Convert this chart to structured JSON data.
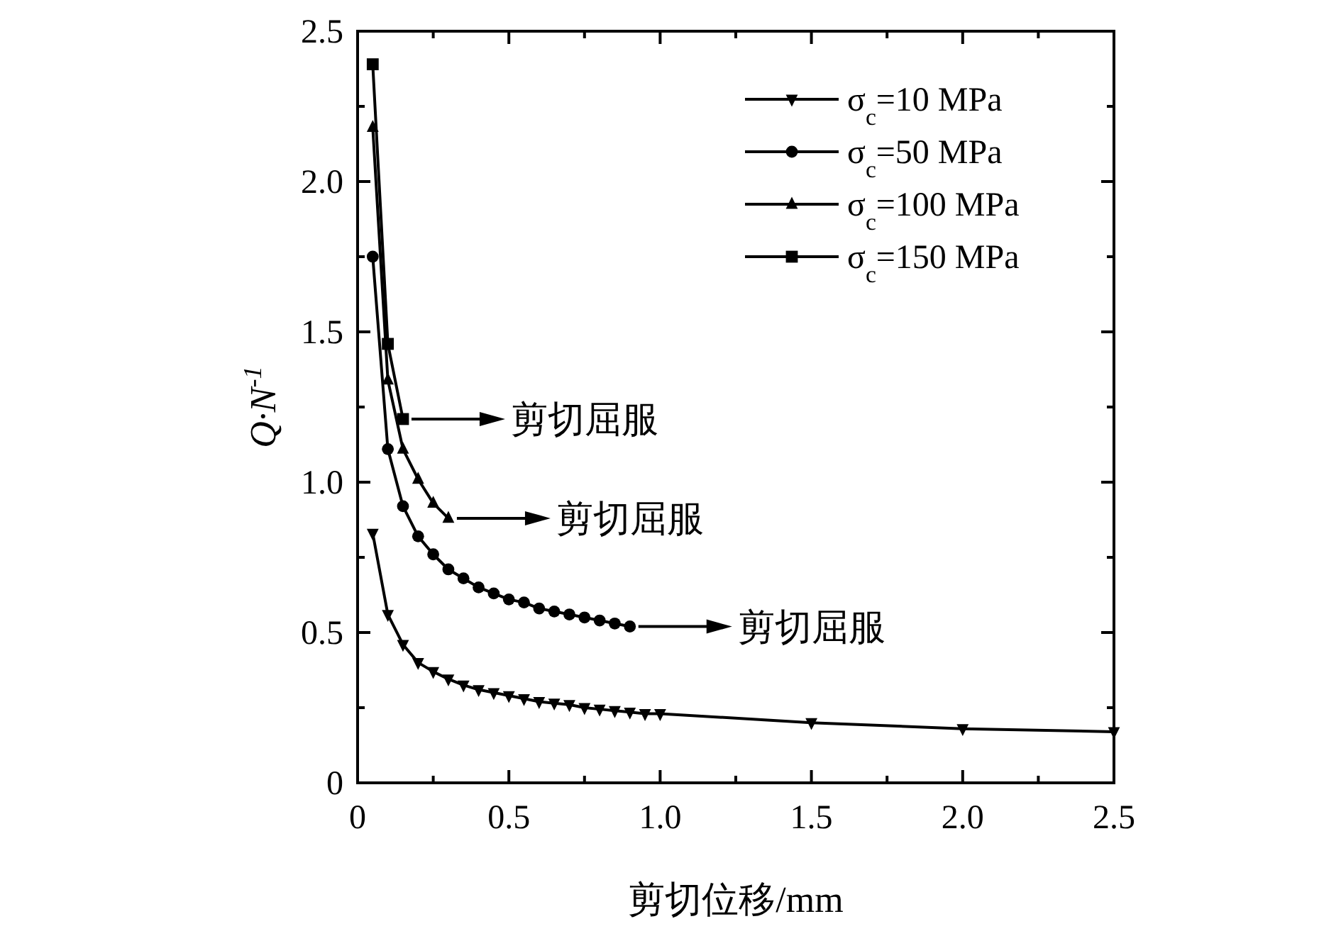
{
  "chart_data": {
    "type": "line",
    "xlabel": "剪切位移/mm",
    "ylabel": "Q·N$^{-1}$",
    "xlim": [
      0,
      2.5
    ],
    "ylim": [
      0,
      2.5
    ],
    "xticks": [
      0,
      {
        "value": 0.25,
        "label": null
      },
      0.5,
      {
        "value": 0.75,
        "label": null
      },
      {
        "value": 1,
        "label": "1.0"
      },
      {
        "value": 1.25,
        "label": null
      },
      1.5,
      {
        "value": 1.75,
        "label": null
      },
      {
        "value": 2,
        "label": "2.0"
      },
      {
        "value": 2.25,
        "label": null
      },
      2.5
    ],
    "yticks": [
      0,
      {
        "value": 0.25,
        "label": null
      },
      0.5,
      {
        "value": 0.75,
        "label": null
      },
      {
        "value": 1,
        "label": "1.0"
      },
      {
        "value": 1.25,
        "label": null
      },
      1.5,
      {
        "value": 1.75,
        "label": null
      },
      {
        "value": 2,
        "label": "2.0"
      },
      {
        "value": 2.25,
        "label": null
      },
      2.5
    ],
    "legend": "top right",
    "grid": false,
    "line_style": "solid",
    "series": [
      {
        "name": "σ$_{c}$=10 MPa",
        "color": "#000000",
        "marker": "triangle-down",
        "x": [
          0.05,
          0.1,
          0.15,
          0.2,
          0.25,
          0.3,
          0.35,
          0.4,
          0.45,
          0.5,
          0.55,
          0.6,
          0.65,
          0.7,
          0.75,
          0.8,
          0.85,
          0.9,
          0.95,
          1.0,
          1.5,
          2.0,
          2.5
        ],
        "values": [
          0.83,
          0.56,
          0.46,
          0.4,
          0.37,
          0.345,
          0.325,
          0.31,
          0.3,
          0.29,
          0.28,
          0.27,
          0.265,
          0.26,
          0.25,
          0.245,
          0.24,
          0.235,
          0.23,
          0.23,
          0.2,
          0.18,
          0.17
        ]
      },
      {
        "name": "σ$_{c}$=50 MPa",
        "color": "#000000",
        "marker": "circle",
        "x": [
          0.05,
          0.1,
          0.15,
          0.2,
          0.25,
          0.3,
          0.35,
          0.4,
          0.45,
          0.5,
          0.55,
          0.6,
          0.65,
          0.7,
          0.75,
          0.8,
          0.85,
          0.9
        ],
        "values": [
          1.75,
          1.11,
          0.92,
          0.82,
          0.76,
          0.71,
          0.68,
          0.65,
          0.63,
          0.61,
          0.6,
          0.58,
          0.57,
          0.56,
          0.55,
          0.54,
          0.53,
          0.52
        ]
      },
      {
        "name": "σ$_{c}$=100 MPa",
        "color": "#000000",
        "marker": "triangle",
        "x": [
          0.05,
          0.1,
          0.15,
          0.2,
          0.25,
          0.3
        ],
        "values": [
          2.18,
          1.34,
          1.11,
          1.01,
          0.93,
          0.88
        ]
      },
      {
        "name": "σ$_{c}$=150 MPa",
        "color": "#000000",
        "marker": "square",
        "x": [
          0.05,
          0.1,
          0.15
        ],
        "values": [
          2.39,
          1.46,
          1.21
        ]
      }
    ],
    "annotations": [
      {
        "text": "剪切屈服",
        "x": 0.15,
        "y": 1.21
      },
      {
        "text": "剪切屈服",
        "x": 0.3,
        "y": 0.88
      },
      {
        "text": "剪切屈服",
        "x": 0.9,
        "y": 0.52
      }
    ]
  }
}
